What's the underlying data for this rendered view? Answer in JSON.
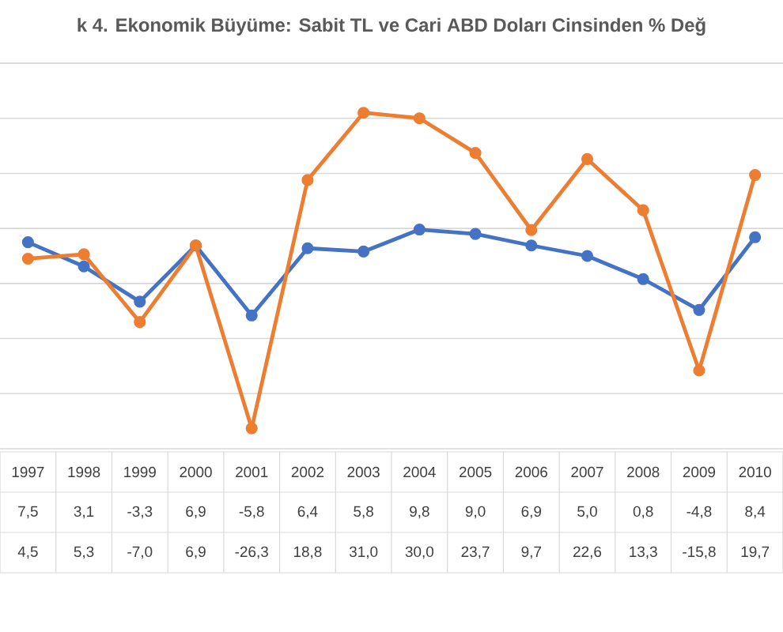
{
  "chart_data": {
    "type": "line",
    "title": "k 4. Ekonomik Büyüme: Sabit TL ve Cari ABD Doları Cinsinden % Değ",
    "categories": [
      "1997",
      "1998",
      "1999",
      "2000",
      "2001",
      "2002",
      "2003",
      "2004",
      "2005",
      "2006",
      "2007",
      "2008",
      "2009",
      "2010"
    ],
    "series": [
      {
        "color": "#4472c4",
        "values": [
          7.5,
          3.1,
          -3.3,
          6.9,
          -5.8,
          6.4,
          5.8,
          9.8,
          9.0,
          6.9,
          5.0,
          0.8,
          -4.8,
          8.4
        ],
        "value_labels": [
          "7,5",
          "3,1",
          "-3,3",
          "6,9",
          "-5,8",
          "6,4",
          "5,8",
          "9,8",
          "9,0",
          "6,9",
          "5,0",
          "0,8",
          "-4,8",
          "8,4"
        ]
      },
      {
        "color": "#ed7d31",
        "values": [
          4.5,
          5.3,
          -7.0,
          6.9,
          -26.3,
          18.8,
          31.0,
          30.0,
          23.7,
          9.7,
          22.6,
          13.3,
          -15.8,
          19.7
        ],
        "value_labels": [
          "4,5",
          "5,3",
          "-7,0",
          "6,9",
          "-26,3",
          "18,8",
          "31,0",
          "30,0",
          "23,7",
          "9,7",
          "22,6",
          "13,3",
          "-15,8",
          "19,7"
        ]
      }
    ],
    "ylim": [
      -30,
      40
    ],
    "yticks": [
      {
        "value": -30,
        "label": null
      },
      {
        "value": -20,
        "label": null
      },
      {
        "value": -10,
        "label": null
      },
      {
        "value": 0,
        "label": null
      },
      {
        "value": 10,
        "label": null
      },
      {
        "value": 20,
        "label": null
      },
      {
        "value": 30,
        "label": null
      },
      {
        "value": 40,
        "label": null
      }
    ],
    "grid": "y",
    "marker": "circle",
    "tick_labels": "x"
  }
}
